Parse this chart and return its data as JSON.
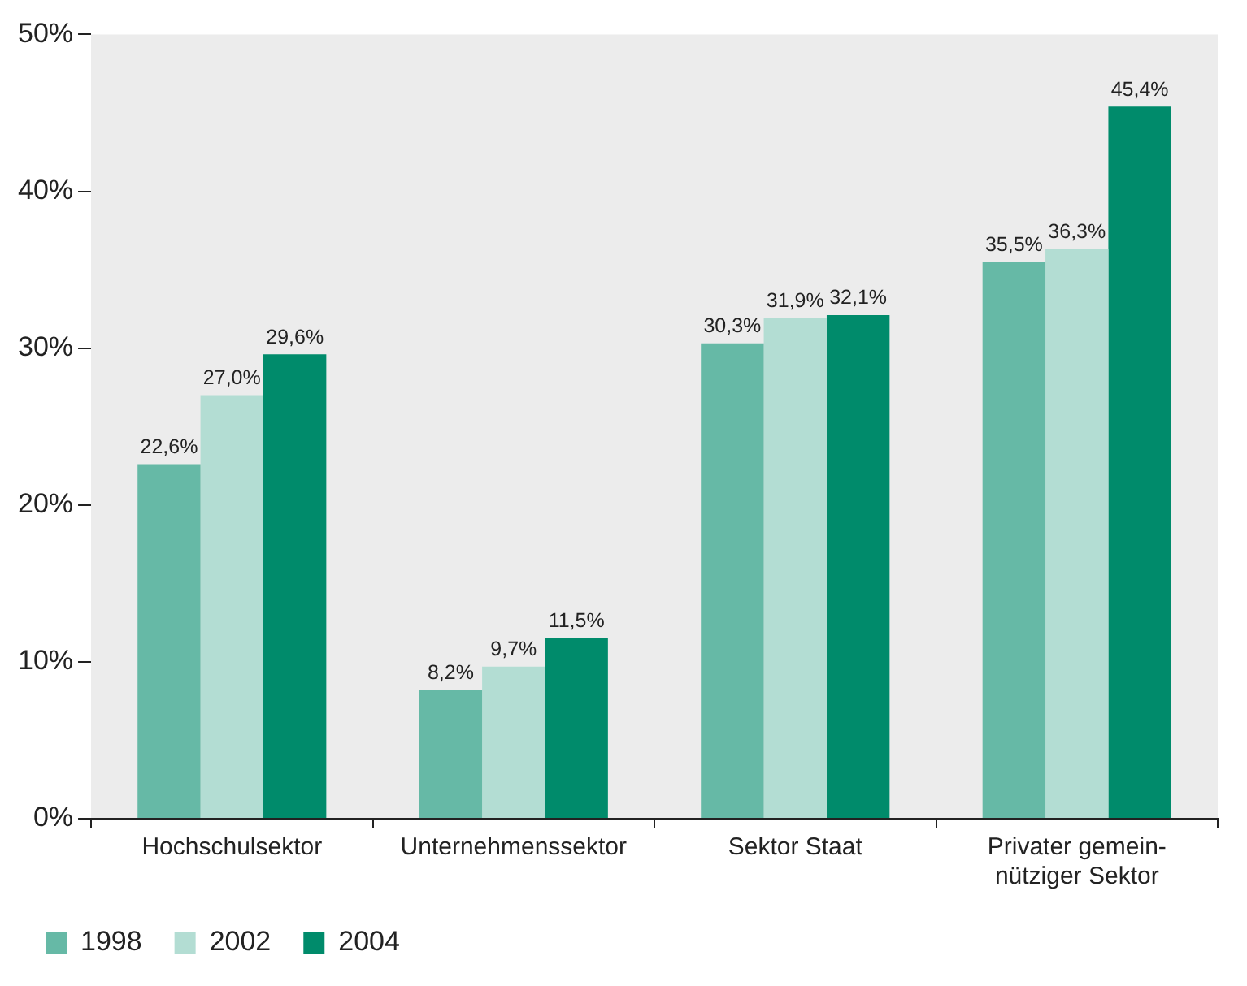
{
  "chart_data": {
    "type": "bar",
    "categories": [
      "Hochschulsektor",
      "Unternehmenssektor",
      "Sektor Staat",
      "Privater gemein- nütziger Sektor"
    ],
    "series": [
      {
        "name": "1998",
        "color": "#66b9a6",
        "values": [
          22.6,
          8.2,
          30.3,
          35.5
        ],
        "value_labels": [
          "22,6%",
          "8,2%",
          "30,3%",
          "35,5%"
        ]
      },
      {
        "name": "2002",
        "color": "#b3ddd3",
        "values": [
          27.0,
          9.7,
          31.9,
          36.3
        ],
        "value_labels": [
          "27,0%",
          "9,7%",
          "31,9%",
          "36,3%"
        ]
      },
      {
        "name": "2004",
        "color": "#008b6b",
        "values": [
          29.6,
          11.5,
          32.1,
          45.4
        ],
        "value_labels": [
          "29,6%",
          "11,5%",
          "32,1%",
          "45,4%"
        ]
      }
    ],
    "ylim": [
      0,
      50
    ],
    "yticks": [
      {
        "value": 0,
        "label": "0%"
      },
      {
        "value": 10,
        "label": "10%"
      },
      {
        "value": 20,
        "label": "20%"
      },
      {
        "value": 30,
        "label": "30%"
      },
      {
        "value": 40,
        "label": "40%"
      },
      {
        "value": 50,
        "label": "50%"
      }
    ],
    "grid": false,
    "legend": "bottom left"
  }
}
